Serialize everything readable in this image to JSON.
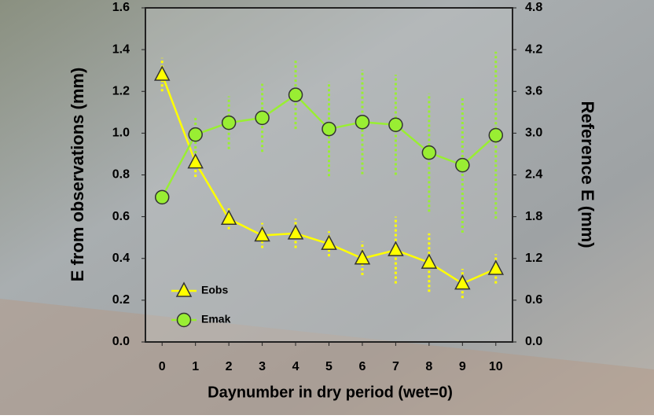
{
  "chart_data": {
    "type": "line",
    "xlabel": "Daynumber in dry period (wet=0)",
    "ylabel": "E from observations (mm)",
    "y2label": "Reference E (mm)",
    "x": [
      0,
      1,
      2,
      3,
      4,
      5,
      6,
      7,
      8,
      9,
      10
    ],
    "xlim": [
      -0.5,
      10.5
    ],
    "xticks": [
      0,
      1,
      2,
      3,
      4,
      5,
      6,
      7,
      8,
      9,
      10
    ],
    "ylim": [
      0,
      1.6
    ],
    "yticks": [
      {
        "value": 0,
        "label": "0.0"
      },
      0.2,
      0.4,
      0.6,
      0.8,
      {
        "value": 1,
        "label": "1.0"
      },
      1.2,
      1.4,
      1.6
    ],
    "y2lim": [
      0,
      4.8
    ],
    "y2ticks": [
      {
        "value": 0,
        "label": "0.0"
      },
      0.6,
      1.2,
      1.8,
      2.4,
      {
        "value": 3,
        "label": "3.0"
      },
      3.6,
      4.2,
      4.8
    ],
    "series": [
      {
        "name": "Eobs",
        "color": "#ffff00",
        "marker": "triangle",
        "values": [
          1.28,
          0.86,
          0.59,
          0.51,
          0.52,
          0.47,
          0.4,
          0.44,
          0.38,
          0.28,
          0.35
        ],
        "errors": [
          0.08,
          0.07,
          0.05,
          0.06,
          0.07,
          0.06,
          0.08,
          0.16,
          0.14,
          0.07,
          0.07
        ]
      },
      {
        "name": "Emak",
        "color": "#99ee33",
        "marker": "circle",
        "axis": "y2",
        "values": [
          2.08,
          2.98,
          3.15,
          3.22,
          3.55,
          3.06,
          3.16,
          3.12,
          2.72,
          2.54,
          2.97
        ],
        "errors": [
          null,
          0.27,
          0.38,
          0.49,
          0.49,
          0.68,
          0.75,
          0.72,
          0.85,
          0.97,
          1.2
        ]
      }
    ]
  }
}
